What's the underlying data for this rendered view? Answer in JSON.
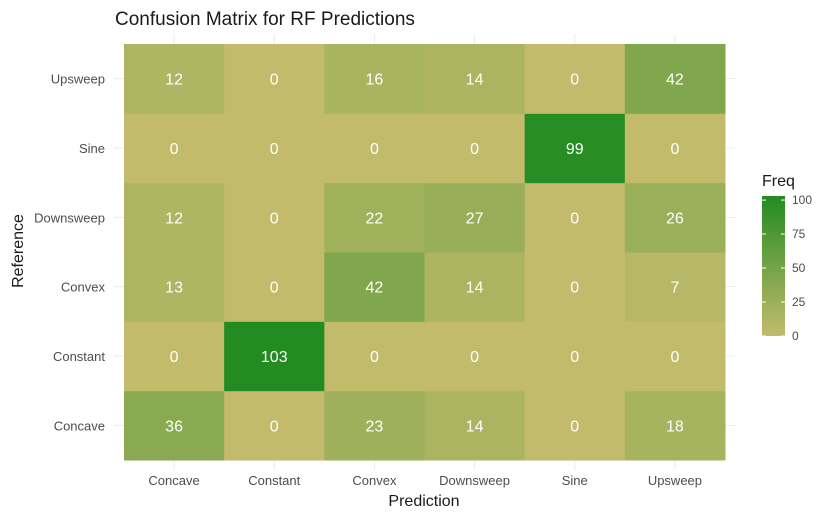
{
  "chart_data": {
    "type": "heatmap",
    "title": "Confusion Matrix for RF Predictions",
    "xlabel": "Prediction",
    "ylabel": "Reference",
    "x_categories": [
      "Concave",
      "Constant",
      "Convex",
      "Downsweep",
      "Sine",
      "Upsweep"
    ],
    "y_categories": [
      "Concave",
      "Constant",
      "Convex",
      "Downsweep",
      "Sine",
      "Upsweep"
    ],
    "values": [
      [
        36,
        0,
        23,
        14,
        0,
        18
      ],
      [
        0,
        103,
        0,
        0,
        0,
        0
      ],
      [
        13,
        0,
        42,
        14,
        0,
        7
      ],
      [
        12,
        0,
        22,
        27,
        0,
        26
      ],
      [
        0,
        0,
        0,
        0,
        99,
        0
      ],
      [
        12,
        0,
        16,
        14,
        0,
        42
      ]
    ],
    "legend": {
      "title": "Freq",
      "ticks": [
        0,
        25,
        50,
        75,
        100
      ],
      "range": [
        0,
        103
      ],
      "low_color": "#c2bb6c",
      "high_color": "#228b22"
    },
    "grid": true,
    "legend_position": "right"
  }
}
